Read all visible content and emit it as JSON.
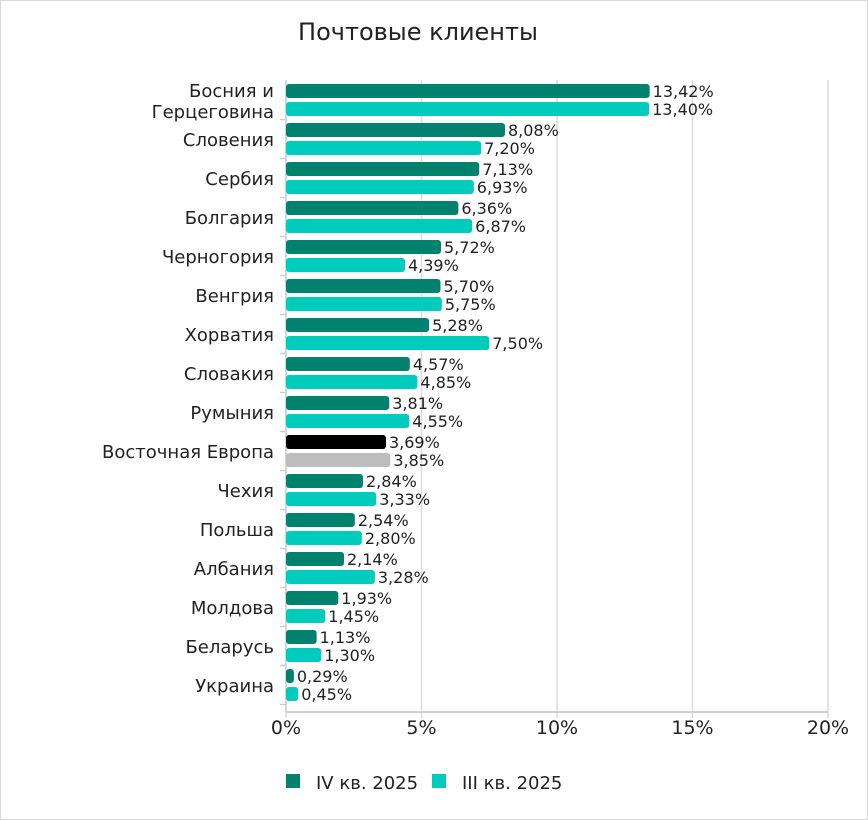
{
  "chart_data": {
    "type": "bar",
    "orientation": "horizontal",
    "title": "Почтовые клиенты",
    "xlabel": "",
    "ylabel": "",
    "xlim": [
      0,
      20
    ],
    "x_ticks": [
      "0%",
      "5%",
      "10%",
      "15%",
      "20%"
    ],
    "grid": true,
    "legend_position": "bottom",
    "categories": [
      "Босния и Герцеговина",
      "Словения",
      "Сербия",
      "Болгария",
      "Черногория",
      "Венгрия",
      "Хорватия",
      "Словакия",
      "Румыния",
      "Восточная Европа",
      "Чехия",
      "Польша",
      "Албания",
      "Молдова",
      "Беларусь",
      "Украина"
    ],
    "series": [
      {
        "name": "IV кв. 2025",
        "color": "#00826E",
        "highlight_color": "#000000",
        "values": [
          13.42,
          8.08,
          7.13,
          6.36,
          5.72,
          5.7,
          5.28,
          4.57,
          3.81,
          3.69,
          2.84,
          2.54,
          2.14,
          1.93,
          1.13,
          0.29
        ],
        "labels": [
          "13,42%",
          "8,08%",
          "7,13%",
          "6,36%",
          "5,72%",
          "5,70%",
          "5,28%",
          "4,57%",
          "3,81%",
          "3,69%",
          "2,84%",
          "2,54%",
          "2,14%",
          "1,93%",
          "1,13%",
          "0,29%"
        ]
      },
      {
        "name": "III кв. 2025",
        "color": "#00CCBE",
        "highlight_color": "#BDBDBD",
        "values": [
          13.4,
          7.2,
          6.93,
          6.87,
          4.39,
          5.75,
          7.5,
          4.85,
          4.55,
          3.85,
          3.33,
          2.8,
          3.28,
          1.45,
          1.3,
          0.45
        ],
        "labels": [
          "13,40%",
          "7,20%",
          "6,93%",
          "6,87%",
          "4,39%",
          "5,75%",
          "7,50%",
          "4,85%",
          "4,55%",
          "3,85%",
          "3,33%",
          "2,80%",
          "3,28%",
          "1,45%",
          "1,30%",
          "0,45%"
        ]
      }
    ],
    "highlight_category": "Восточная Европа"
  }
}
